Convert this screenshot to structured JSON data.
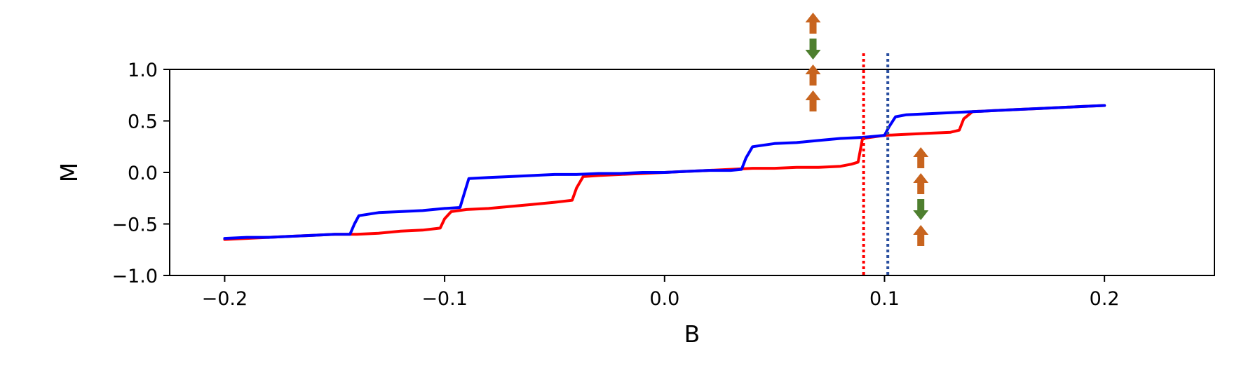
{
  "chart_data": {
    "type": "line",
    "title": "",
    "xlabel": "B",
    "ylabel": "M",
    "xlim": [
      -0.225,
      0.25
    ],
    "ylim": [
      -1.0,
      1.0
    ],
    "xticks": [
      -0.2,
      -0.1,
      0.0,
      0.1,
      0.2
    ],
    "xtick_labels": [
      "−0.2",
      "−0.1",
      "0.0",
      "0.1",
      "0.2"
    ],
    "yticks": [
      -1.0,
      -0.5,
      0.0,
      0.5,
      1.0
    ],
    "ytick_labels": [
      "−1.0",
      "−0.5",
      "0.0",
      "0.5",
      "1.0"
    ],
    "grid": false,
    "series": [
      {
        "color": "#ff0000",
        "x": [
          -0.2,
          -0.19,
          -0.18,
          -0.17,
          -0.16,
          -0.15,
          -0.14,
          -0.13,
          -0.12,
          -0.11,
          -0.102,
          -0.1,
          -0.097,
          -0.09,
          -0.08,
          -0.07,
          -0.06,
          -0.05,
          -0.042,
          -0.04,
          -0.037,
          -0.03,
          -0.02,
          -0.01,
          0.0,
          0.01,
          0.02,
          0.03,
          0.04,
          0.05,
          0.06,
          0.07,
          0.08,
          0.085,
          0.088,
          0.09,
          0.1,
          0.11,
          0.12,
          0.13,
          0.134,
          0.136,
          0.14,
          0.15,
          0.16,
          0.17,
          0.18,
          0.19,
          0.2
        ],
        "y": [
          -0.65,
          -0.64,
          -0.63,
          -0.62,
          -0.61,
          -0.6,
          -0.6,
          -0.59,
          -0.57,
          -0.56,
          -0.54,
          -0.45,
          -0.38,
          -0.36,
          -0.35,
          -0.33,
          -0.31,
          -0.29,
          -0.27,
          -0.15,
          -0.04,
          -0.03,
          -0.02,
          -0.01,
          0.0,
          0.01,
          0.02,
          0.03,
          0.04,
          0.04,
          0.05,
          0.05,
          0.06,
          0.08,
          0.1,
          0.33,
          0.36,
          0.37,
          0.38,
          0.39,
          0.41,
          0.52,
          0.59,
          0.6,
          0.61,
          0.62,
          0.63,
          0.64,
          0.65
        ]
      },
      {
        "color": "#0000ff",
        "x": [
          -0.2,
          -0.19,
          -0.18,
          -0.17,
          -0.16,
          -0.15,
          -0.143,
          -0.141,
          -0.139,
          -0.13,
          -0.12,
          -0.11,
          -0.1,
          -0.093,
          -0.091,
          -0.089,
          -0.08,
          -0.07,
          -0.06,
          -0.05,
          -0.04,
          -0.03,
          -0.02,
          -0.01,
          0.0,
          0.01,
          0.02,
          0.03,
          0.035,
          0.037,
          0.04,
          0.05,
          0.06,
          0.07,
          0.08,
          0.09,
          0.1,
          0.102,
          0.105,
          0.11,
          0.12,
          0.13,
          0.14,
          0.15,
          0.16,
          0.17,
          0.18,
          0.19,
          0.2
        ],
        "y": [
          -0.64,
          -0.63,
          -0.63,
          -0.62,
          -0.61,
          -0.6,
          -0.6,
          -0.5,
          -0.42,
          -0.39,
          -0.38,
          -0.37,
          -0.35,
          -0.34,
          -0.2,
          -0.06,
          -0.05,
          -0.04,
          -0.03,
          -0.02,
          -0.02,
          -0.01,
          -0.01,
          0.0,
          0.0,
          0.01,
          0.02,
          0.02,
          0.03,
          0.14,
          0.25,
          0.28,
          0.29,
          0.31,
          0.33,
          0.34,
          0.36,
          0.44,
          0.54,
          0.56,
          0.57,
          0.58,
          0.59,
          0.6,
          0.61,
          0.62,
          0.63,
          0.64,
          0.65
        ]
      }
    ],
    "annotations": {
      "vlines": [
        {
          "x": 0.0905,
          "color": "#ff0000",
          "style": "dotted"
        },
        {
          "x": 0.1015,
          "color": "#2a4fa0",
          "style": "dotted"
        }
      ],
      "arrow_stacks": [
        {
          "x": 0.0675,
          "directions": [
            "up",
            "down",
            "up",
            "up"
          ]
        },
        {
          "x": 0.1165,
          "directions": [
            "up",
            "up",
            "down",
            "up"
          ]
        }
      ],
      "arrow_colors": {
        "up": "#c8641e",
        "down": "#4e7f2f"
      }
    }
  }
}
